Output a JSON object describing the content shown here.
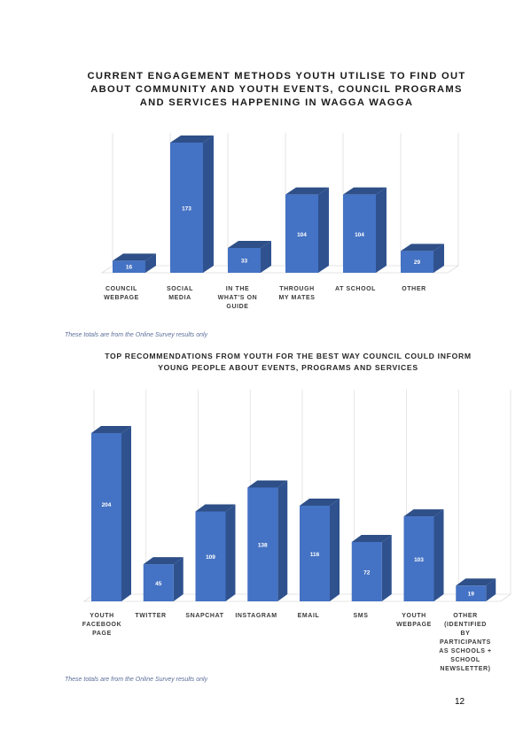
{
  "page": {
    "number": "12"
  },
  "colors": {
    "bar_front": "#4472c4",
    "bar_side": "#2f528f",
    "bar_top": "#2e4f87",
    "grid": "#dcdcdc"
  },
  "chart1": {
    "title": "CURRENT ENGAGEMENT METHODS YOUTH UTILISE TO FIND OUT ABOUT COMMUNITY AND YOUTH EVENTS, COUNCIL PROGRAMS AND SERVICES HAPPENING IN WAGGA WAGGA",
    "note": "These totals are from the Online Survey results only"
  },
  "chart2": {
    "title": "TOP RECOMMENDATIONS FROM YOUTH FOR THE BEST WAY COUNCIL COULD INFORM YOUNG PEOPLE ABOUT EVENTS, PROGRAMS AND SERVICES",
    "note": "These totals are from the Online Survey results only"
  },
  "chart_data": [
    {
      "type": "bar",
      "title": "CURRENT ENGAGEMENT METHODS YOUTH UTILISE TO FIND OUT ABOUT COMMUNITY AND YOUTH EVENTS, COUNCIL PROGRAMS AND SERVICES HAPPENING IN WAGGA WAGGA",
      "categories": [
        [
          "COUNCIL",
          "WEBPAGE"
        ],
        [
          "SOCIAL",
          "MEDIA"
        ],
        [
          "IN THE",
          "WHAT'S ON",
          "GUIDE"
        ],
        [
          "THROUGH",
          "MY MATES"
        ],
        [
          "AT SCHOOL"
        ],
        [
          "OTHER"
        ]
      ],
      "values": [
        16,
        173,
        33,
        104,
        104,
        29
      ],
      "ylim": [
        0,
        173
      ],
      "grid": true,
      "style": "3d-column"
    },
    {
      "type": "bar",
      "title": "TOP RECOMMENDATIONS FROM YOUTH FOR THE BEST WAY COUNCIL COULD INFORM YOUNG PEOPLE ABOUT EVENTS, PROGRAMS AND SERVICES",
      "categories": [
        [
          "YOUTH",
          "FACEBOOK",
          "PAGE"
        ],
        [
          "TWITTER"
        ],
        [
          "SNAPCHAT"
        ],
        [
          "INSTAGRAM"
        ],
        [
          "EMAIL"
        ],
        [
          "SMS"
        ],
        [
          "YOUTH",
          "WEBPAGE"
        ],
        [
          "OTHER",
          "(IDENTIFIED",
          "BY",
          "PARTICIPANTS",
          "AS SCHOOLS +",
          "SCHOOL",
          "NEWSLETTER)"
        ]
      ],
      "values": [
        204,
        45,
        109,
        138,
        116,
        72,
        103,
        19
      ],
      "ylim": [
        0,
        204
      ],
      "grid": true,
      "style": "3d-column"
    }
  ]
}
